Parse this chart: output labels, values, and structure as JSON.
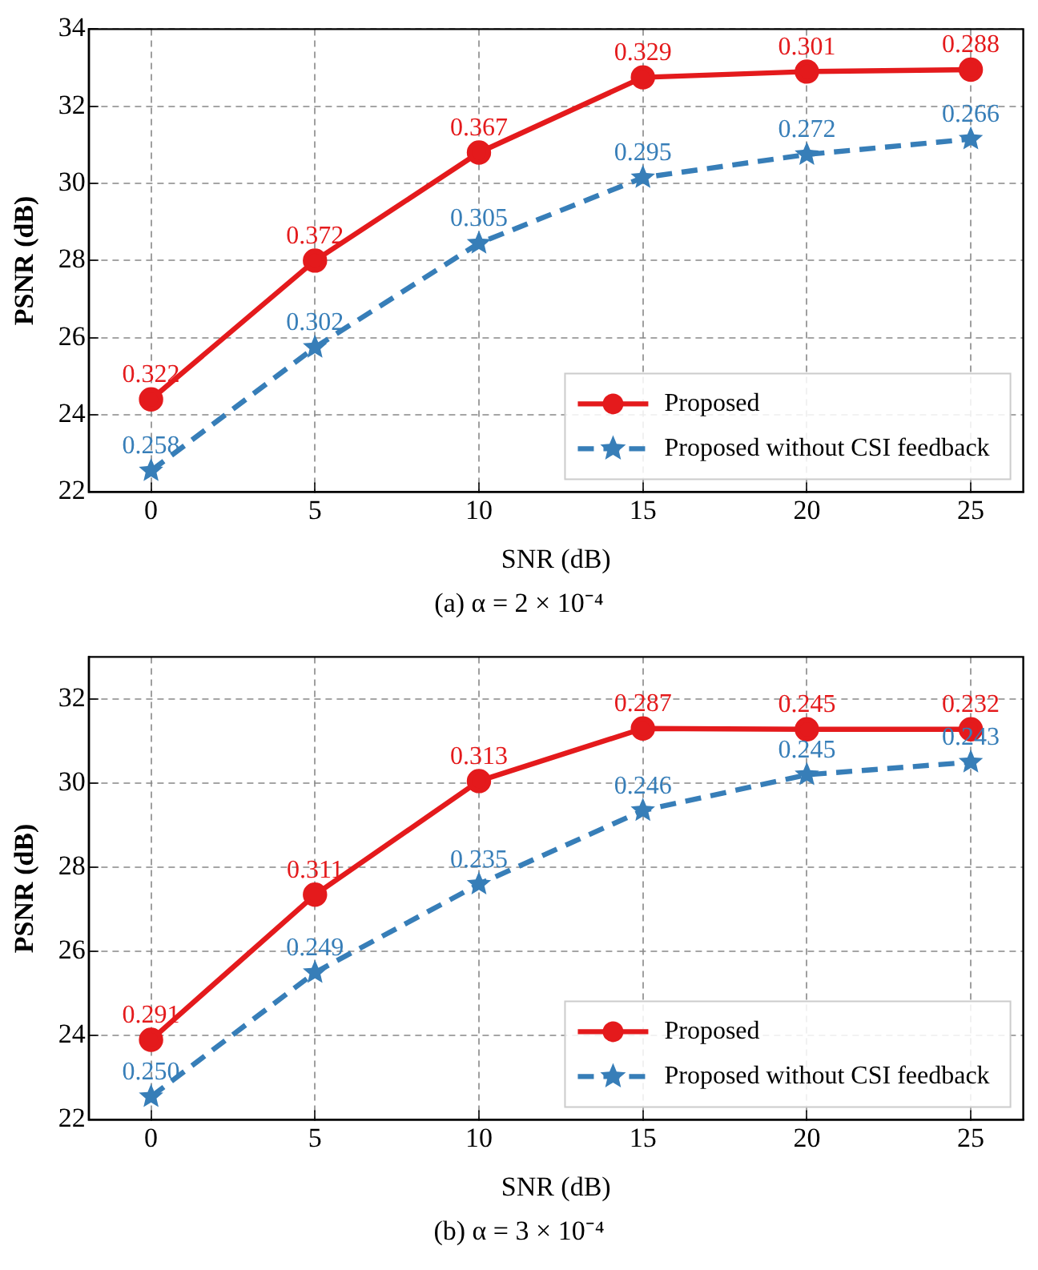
{
  "chart_data": [
    {
      "type": "line",
      "xlabel": "SNR (dB)",
      "ylabel": "PSNR (dB)",
      "x": [
        0,
        5,
        10,
        15,
        20,
        25
      ],
      "xlim": [
        -1.9,
        26.6
      ],
      "xticks": [
        0,
        5,
        10,
        15,
        20,
        25
      ],
      "ylim": [
        22,
        34
      ],
      "yticks": [
        22,
        24,
        26,
        28,
        30,
        32,
        34
      ],
      "grid": true,
      "legend": "bottom right",
      "series": [
        {
          "name": "Proposed",
          "color": "#e41a1c",
          "marker": "circle",
          "line_style": "solid",
          "values": [
            24.4,
            28.0,
            30.8,
            32.75,
            32.9,
            32.95
          ]
        },
        {
          "name": "Proposed without CSI feedback",
          "color": "#377eb8",
          "marker": "star",
          "line_style": "dashed",
          "values": [
            22.55,
            25.75,
            28.45,
            30.15,
            30.75,
            31.15
          ]
        }
      ],
      "annotations": [
        "(a) α = 2 × 10⁻⁴",
        {
          "text": "0.322",
          "x": 0,
          "y": 24.4
        },
        {
          "text": "0.372",
          "x": 5,
          "y": 28.0
        },
        {
          "text": "0.367",
          "x": 10,
          "y": 30.8
        },
        {
          "text": "0.329",
          "x": 15,
          "y": 32.75
        },
        {
          "text": "0.301",
          "x": 20,
          "y": 32.9
        },
        {
          "text": "0.288",
          "x": 25,
          "y": 32.95
        },
        {
          "text": "0.258",
          "x": 0,
          "y": 22.55
        },
        {
          "text": "0.302",
          "x": 5,
          "y": 25.75
        },
        {
          "text": "0.305",
          "x": 10,
          "y": 28.45
        },
        {
          "text": "0.295",
          "x": 15,
          "y": 30.15
        },
        {
          "text": "0.272",
          "x": 20,
          "y": 30.75
        },
        {
          "text": "0.266",
          "x": 25,
          "y": 31.15
        }
      ]
    },
    {
      "type": "line",
      "xlabel": "SNR (dB)",
      "ylabel": "PSNR (dB)",
      "x": [
        0,
        5,
        10,
        15,
        20,
        25
      ],
      "xlim": [
        -1.9,
        26.6
      ],
      "xticks": [
        0,
        5,
        10,
        15,
        20,
        25
      ],
      "ylim": [
        22,
        33
      ],
      "yticks": [
        22,
        24,
        26,
        28,
        30,
        32
      ],
      "grid": true,
      "legend": "bottom right",
      "series": [
        {
          "name": "Proposed",
          "color": "#e41a1c",
          "marker": "circle",
          "line_style": "solid",
          "values": [
            23.9,
            27.35,
            30.05,
            31.3,
            31.28,
            31.28
          ]
        },
        {
          "name": "Proposed without CSI feedback",
          "color": "#377eb8",
          "marker": "star",
          "line_style": "dashed",
          "values": [
            22.55,
            25.5,
            27.6,
            29.35,
            30.2,
            30.5
          ]
        }
      ],
      "annotations": [
        "(b) α = 3 × 10⁻⁴",
        {
          "text": "0.291",
          "x": 0,
          "y": 23.9
        },
        {
          "text": "0.311",
          "x": 5,
          "y": 27.35
        },
        {
          "text": "0.313",
          "x": 10,
          "y": 30.05
        },
        {
          "text": "0.287",
          "x": 15,
          "y": 31.3
        },
        {
          "text": "0.245",
          "x": 20,
          "y": 31.28
        },
        {
          "text": "0.232",
          "x": 25,
          "y": 31.28
        },
        {
          "text": "0.250",
          "x": 0,
          "y": 22.55
        },
        {
          "text": "0.249",
          "x": 5,
          "y": 25.5
        },
        {
          "text": "0.235",
          "x": 10,
          "y": 27.6
        },
        {
          "text": "0.246",
          "x": 15,
          "y": 29.35
        },
        {
          "text": "0.245",
          "x": 20,
          "y": 30.2
        },
        {
          "text": "0.243",
          "x": 25,
          "y": 30.5
        }
      ]
    }
  ]
}
